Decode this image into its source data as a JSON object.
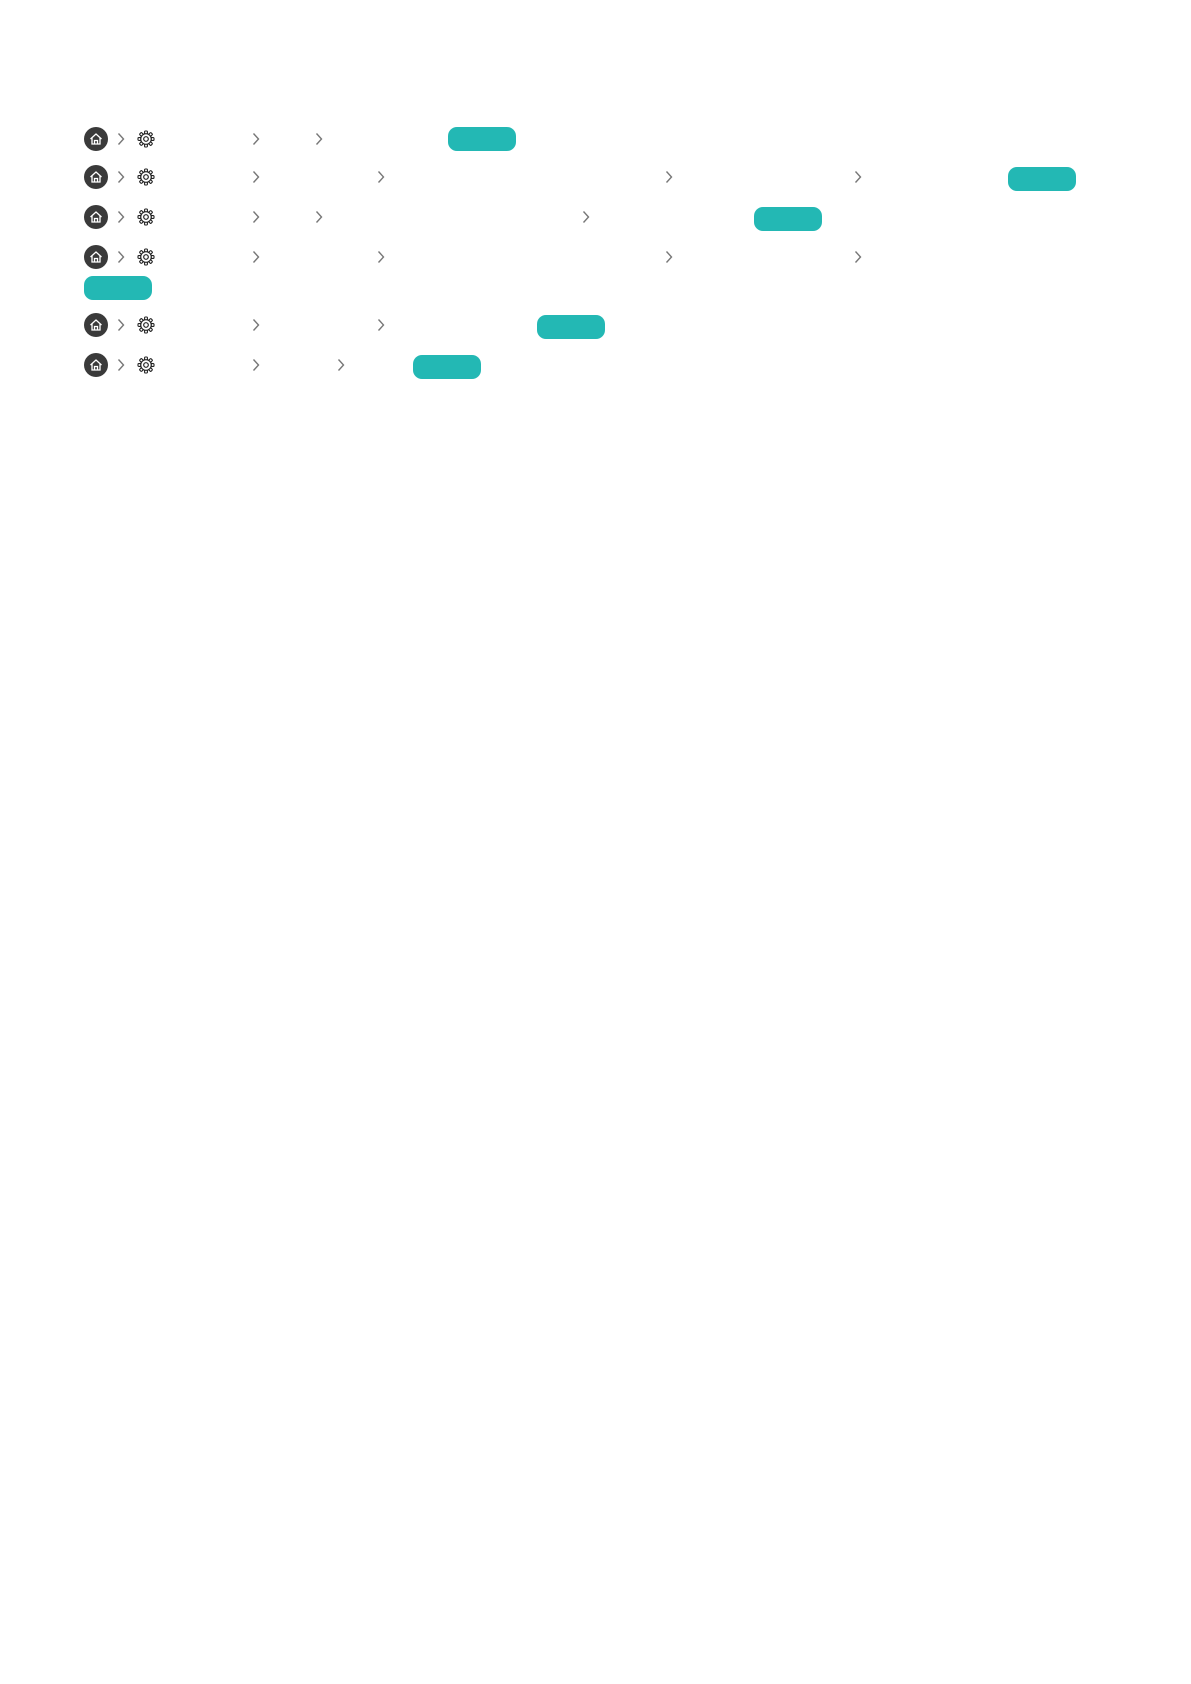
{
  "colors": {
    "accent": "#23b8b4",
    "home_icon_bg": "#3a3a3a",
    "chevron": "#777777"
  },
  "icons": {
    "home": "home-icon",
    "settings": "gear-icon",
    "separator": "chevron-right-icon"
  },
  "rows": [
    {
      "chevrons": 3,
      "has_badge": true
    },
    {
      "chevrons": 5,
      "has_badge": true
    },
    {
      "chevrons": 4,
      "has_badge": true
    },
    {
      "chevrons": 5,
      "has_badge": true
    },
    {
      "chevrons": 3,
      "has_badge": true
    },
    {
      "chevrons": 3,
      "has_badge": true
    }
  ]
}
